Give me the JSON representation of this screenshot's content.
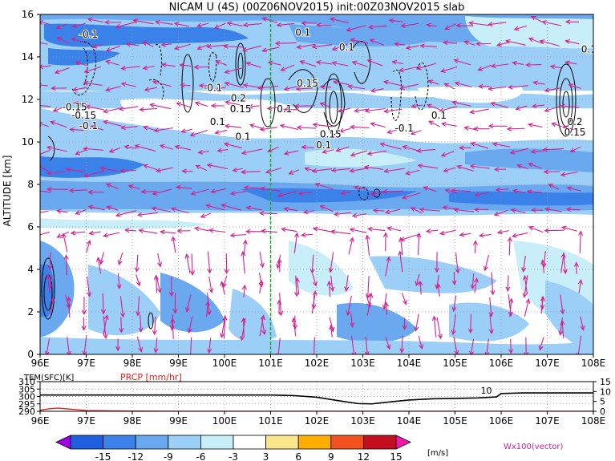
{
  "chart_data": [
    {
      "type": "heatmap",
      "title": "NICAM U (4S) (00Z06NOV2015) init:00Z03NOV2015 slab",
      "ylabel": "ALTITUDE [km]",
      "xlim": [
        96,
        108
      ],
      "ylim": [
        0,
        16
      ],
      "x_ticks": [
        "96E",
        "97E",
        "98E",
        "99E",
        "100E",
        "101E",
        "102E",
        "103E",
        "104E",
        "105E",
        "106E",
        "107E",
        "108E"
      ],
      "y_ticks": [
        "0",
        "2",
        "4",
        "6",
        "8",
        "10",
        "12",
        "14",
        "16"
      ],
      "marker_line_x": 101,
      "grid": true,
      "contour_labels": [
        {
          "text": "-0.1",
          "x": 97.05,
          "y": 14.9
        },
        {
          "text": "-0.15",
          "x": 96.75,
          "y": 11.5
        },
        {
          "text": "-0.15",
          "x": 96.95,
          "y": 11.1
        },
        {
          "text": "-0.1",
          "x": 97.05,
          "y": 10.6
        },
        {
          "text": "-0.1",
          "x": 99.75,
          "y": 12.4
        },
        {
          "text": "0.2",
          "x": 100.3,
          "y": 11.9
        },
        {
          "text": "0.15",
          "x": 100.35,
          "y": 11.4
        },
        {
          "text": "0.1",
          "x": 99.85,
          "y": 10.8
        },
        {
          "text": "0.1",
          "x": 100.4,
          "y": 10.1
        },
        {
          "text": "0.1",
          "x": 101.7,
          "y": 15
        },
        {
          "text": "0.15",
          "x": 101.8,
          "y": 12.6
        },
        {
          "text": "0.1",
          "x": 101.3,
          "y": 11.4
        },
        {
          "text": "0.1",
          "x": 102.65,
          "y": 14.3
        },
        {
          "text": "0.15",
          "x": 102.3,
          "y": 10.2
        },
        {
          "text": "0.1",
          "x": 102.15,
          "y": 9.7
        },
        {
          "text": "-0.1",
          "x": 103.9,
          "y": 10.5
        },
        {
          "text": "0.1",
          "x": 104.65,
          "y": 11.1
        },
        {
          "text": "0.1",
          "x": 107.9,
          "y": 14.2
        },
        {
          "text": "0.2",
          "x": 107.6,
          "y": 10.8
        },
        {
          "text": "0.15",
          "x": 107.6,
          "y": 10.3
        }
      ],
      "colorbar": {
        "levels": [
          "-15",
          "-12",
          "-9",
          "-6",
          "-3",
          "3",
          "6",
          "9",
          "12",
          "15"
        ],
        "colors": [
          "#a000e8",
          "#1e5ee0",
          "#3a82ea",
          "#6aa8f0",
          "#9ccff7",
          "#c8eef9",
          "#ffffff",
          "#f9e68a",
          "#ffae00",
          "#f2521e",
          "#c4101e",
          "#f01aa8"
        ],
        "unit": "[m/s]"
      },
      "vector_label": "Wx100(vector)"
    },
    {
      "type": "line",
      "xlim": [
        96,
        108
      ],
      "x_ticks": [
        "96E",
        "97E",
        "98E",
        "99E",
        "100E",
        "101E",
        "102E",
        "103E",
        "104E",
        "105E",
        "106E",
        "107E",
        "108E"
      ],
      "left_axis": {
        "label": "TEM(SFC)[K]",
        "ticks": [
          "290",
          "295",
          "300",
          "305",
          "310"
        ],
        "range": [
          290,
          310
        ]
      },
      "right_axis": {
        "label": "PRCP [mm/hr]",
        "ticks": [
          "0",
          "5",
          "10",
          "15"
        ],
        "range": [
          0,
          15
        ]
      },
      "series": [
        {
          "role": "temperature",
          "color": "#000000",
          "x": [
            96,
            101,
            101.5,
            102,
            102.3,
            102.6,
            102.9,
            103.2,
            103.6,
            104,
            104.5,
            105,
            105.5,
            105.9,
            106,
            106.5,
            107,
            108
          ],
          "values": [
            301,
            301,
            300.6,
            299.5,
            298,
            296.5,
            295.2,
            295,
            296.4,
            297.6,
            298.4,
            298.7,
            299,
            299.7,
            302,
            302.4,
            302.4,
            302.4
          ]
        },
        {
          "role": "precipitation",
          "color": "#e8201c",
          "x": [
            96,
            96.2,
            96.4,
            96.7,
            97,
            97.5,
            98,
            99,
            100,
            101,
            102,
            103,
            104,
            105,
            106,
            107,
            108
          ],
          "values": [
            0.5,
            1.3,
            1.6,
            1,
            0.4,
            0.2,
            0.1,
            0,
            0,
            0,
            0,
            0,
            0,
            0,
            0,
            0,
            0
          ]
        }
      ],
      "annotation": {
        "text": "10",
        "x": 105.8
      }
    }
  ]
}
